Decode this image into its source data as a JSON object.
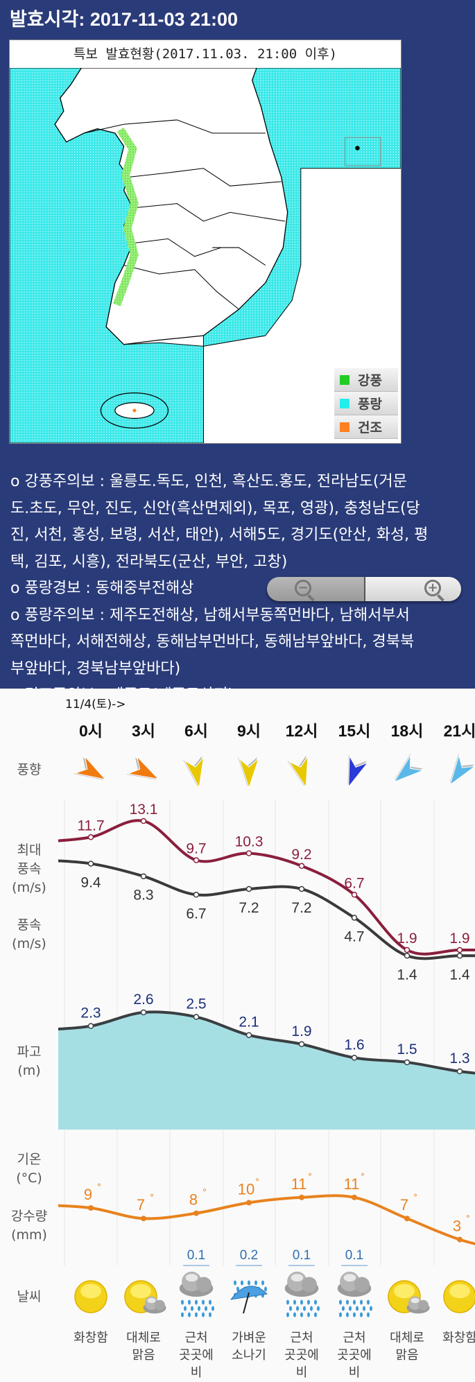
{
  "header": {
    "title": "발효시각: 2017-11-03 21:00"
  },
  "map": {
    "title": "특보 발효현황(2017.11.03. 21:00 이후)",
    "legend": [
      {
        "label": "강풍",
        "color": "#22cc22"
      },
      {
        "label": "풍랑",
        "color": "#22eeee"
      },
      {
        "label": "건조",
        "color": "#ff8020"
      }
    ]
  },
  "notice_lines": [
    "o 강풍주의보 : 울릉도.독도, 인천, 흑산도.홍도, 전라남도(거문",
    "도.초도, 무안, 진도, 신안(흑산면제외), 목포, 영광), 충청남도(당",
    "진, 서천, 홍성, 보령, 서산, 태안), 서해5도, 경기도(안산, 화성, 평",
    "택, 김포, 시흥), 전라북도(군산, 부안, 고창)",
    "o 풍랑경보 : 동해중부전해상",
    "o 풍랑주의보 : 제주도전해상, 남해서부동쪽먼바다, 남해서부서",
    "쪽먼바다, 서해전해상, 동해남부먼바다, 동해남부앞바다, 경북북",
    "부앞바다, 경북남부앞바다)",
    "o 건조주의보 : 제주도(제주도산지)"
  ],
  "zoom_control": {
    "zoom_out_icon": "zoom-out-icon",
    "zoom_in_icon": "zoom-in-icon"
  },
  "forecast": {
    "date_label": "11/4(토)->",
    "row_labels": {
      "wind_dir": "풍향",
      "max_wind": [
        "최대",
        "풍속",
        "(m/s)"
      ],
      "wind": [
        "풍속",
        "(m/s)"
      ],
      "wave": [
        "파고",
        "(m)"
      ],
      "temp": [
        "기온",
        "(°C)"
      ],
      "precip": [
        "강수량",
        "(mm)"
      ],
      "weather": "날씨"
    },
    "colors": {
      "max_wind": "#8a1f3c",
      "wind": "#3a3a3a",
      "wave_line": "#3a3f42",
      "wave_fill": "#a6dfe3",
      "wave_label": "#1a2f7a",
      "temp": "#e8821e",
      "precip": "#2f6fb0"
    }
  },
  "chart_data": {
    "type": "line",
    "categories": [
      "0시",
      "3시",
      "6시",
      "9시",
      "12시",
      "15시",
      "18시",
      "21시"
    ],
    "wind_direction": [
      {
        "deg": 120,
        "color": "#f07a10"
      },
      {
        "deg": 118,
        "color": "#f07a10"
      },
      {
        "deg": 170,
        "color": "#e8c800"
      },
      {
        "deg": 180,
        "color": "#e8c800"
      },
      {
        "deg": 165,
        "color": "#e8c800"
      },
      {
        "deg": 200,
        "color": "#2a3ad8"
      },
      {
        "deg": 230,
        "color": "#5ab8e8"
      },
      {
        "deg": 215,
        "color": "#5ab8e8"
      }
    ],
    "series": [
      {
        "key": "max_wind",
        "values": [
          11.7,
          13.1,
          9.7,
          10.3,
          9.2,
          6.7,
          1.9,
          1.9
        ]
      },
      {
        "key": "wind",
        "values": [
          9.4,
          8.3,
          6.7,
          7.2,
          7.2,
          4.7,
          1.4,
          1.4
        ]
      },
      {
        "key": "wave",
        "values": [
          2.3,
          2.6,
          2.5,
          2.1,
          1.9,
          1.6,
          1.5,
          1.3
        ]
      },
      {
        "key": "temp",
        "values": [
          9,
          7,
          8,
          10,
          11,
          11,
          7,
          3
        ]
      }
    ],
    "precip": [
      "",
      "",
      "0.1",
      "0.2",
      "0.1",
      "0.1",
      "",
      ""
    ],
    "weather": [
      {
        "icon": "sun",
        "label": [
          "화창함"
        ]
      },
      {
        "icon": "sun-cloud",
        "label": [
          "대체로",
          "맑음"
        ]
      },
      {
        "icon": "rain-cloud",
        "label": [
          "근처",
          "곳곳에",
          "비"
        ]
      },
      {
        "icon": "umbrella-rain",
        "label": [
          "가벼운",
          "소나기"
        ]
      },
      {
        "icon": "rain-cloud",
        "label": [
          "근처",
          "곳곳에",
          "비"
        ]
      },
      {
        "icon": "rain-cloud",
        "label": [
          "근처",
          "곳곳에",
          "비"
        ]
      },
      {
        "icon": "sun-cloud",
        "label": [
          "대체로",
          "맑음"
        ]
      },
      {
        "icon": "sun",
        "label": [
          "화창함"
        ]
      }
    ]
  }
}
